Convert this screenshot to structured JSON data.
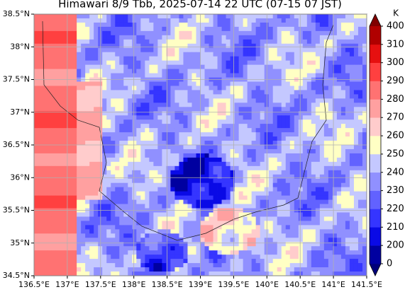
{
  "title": "Himawari 8/9 Tbb, 2025-07-14 22 UTC (07-15 07 JST)",
  "map": {
    "xlim": [
      136.5,
      141.5
    ],
    "xticks": [
      {
        "value": 136.5,
        "label": "136.5°E"
      },
      {
        "value": 137,
        "label": "137°E"
      },
      {
        "value": 137.5,
        "label": "137.5°E"
      },
      {
        "value": 138,
        "label": "138°E"
      },
      {
        "value": 138.5,
        "label": "138.5°E"
      },
      {
        "value": 139,
        "label": "139°E"
      },
      {
        "value": 139.5,
        "label": "139.5°E"
      },
      {
        "value": 140,
        "label": "140°E"
      },
      {
        "value": 140.5,
        "label": "140.5°E"
      },
      {
        "value": 141,
        "label": "141°E"
      },
      {
        "value": 141.5,
        "label": "141.5°E"
      }
    ],
    "ylim": [
      34.5,
      38.5
    ],
    "yticks": [
      {
        "value": 34.5,
        "label": "34.5°N"
      },
      {
        "value": 35,
        "label": "35°N"
      },
      {
        "value": 35.5,
        "label": "35.5°N"
      },
      {
        "value": 36,
        "label": "36°N"
      },
      {
        "value": 36.5,
        "label": "36.5°N"
      },
      {
        "value": 37,
        "label": "37°N"
      },
      {
        "value": 37.5,
        "label": "37.5°N"
      },
      {
        "value": 38,
        "label": "38°N"
      },
      {
        "value": 38.5,
        "label": "38.5°N"
      }
    ],
    "grid": true
  },
  "colorbar": {
    "unit": "K",
    "levels": [
      0,
      200,
      210,
      220,
      230,
      240,
      250,
      260,
      270,
      280,
      290,
      300,
      310,
      400
    ],
    "colors": [
      "#0000a0",
      "#0a0ae6",
      "#3535ff",
      "#6262ff",
      "#9090ff",
      "#c4c8ff",
      "#ffffc4",
      "#ffcccc",
      "#ffa0a0",
      "#ff7272",
      "#ff4040",
      "#e61010",
      "#b00000"
    ],
    "under_color": "#00007a",
    "over_color": "#800000"
  }
}
